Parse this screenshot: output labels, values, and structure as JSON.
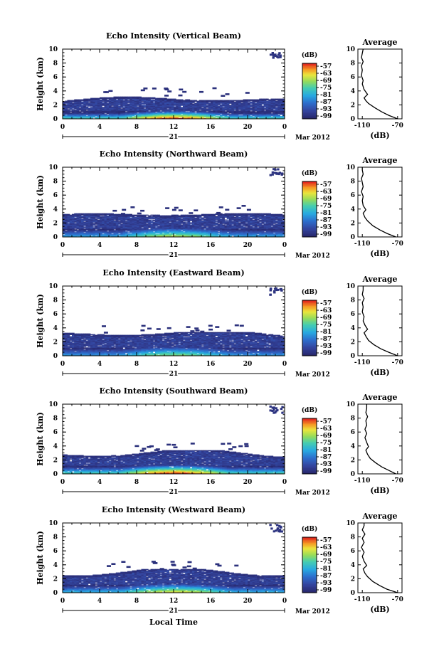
{
  "chart_data": [
    {
      "type": "heatmap",
      "title": "Echo Intensity (Vertical Beam)",
      "ylabel": "Height (km)",
      "x_ticks": [
        "0",
        "4",
        "8",
        "12",
        "16",
        "20",
        "0"
      ],
      "y_ticks": [
        "0",
        "2",
        "4",
        "6",
        "8",
        "10"
      ],
      "xlim": [
        0,
        24
      ],
      "ylim": [
        0,
        10
      ],
      "day_label": "21",
      "date_label": "Mar 2012",
      "colorbar": {
        "unit": "(dB)",
        "ticks": [
          "-57",
          "-63",
          "-69",
          "-75",
          "-81",
          "-87",
          "-93",
          "-99"
        ]
      },
      "layer": {
        "top_km": 2.8,
        "strong_km": 0.8,
        "max_db": -57
      },
      "average": {
        "title": "Average",
        "xlabel": "(dB)",
        "x_ticks": [
          "-110",
          "-70"
        ],
        "xlim": [
          -115,
          -65
        ],
        "y_ticks": [
          "0",
          "2",
          "4",
          "6",
          "8",
          "10"
        ],
        "profile": [
          [
            -70,
            0
          ],
          [
            -80,
            0.5
          ],
          [
            -88,
            1
          ],
          [
            -96,
            1.6
          ],
          [
            -103,
            2.2
          ],
          [
            -106,
            2.6
          ],
          [
            -108,
            3.0
          ],
          [
            -104,
            3.5
          ],
          [
            -108,
            4.2
          ],
          [
            -110,
            5.0
          ],
          [
            -109,
            5.5
          ],
          [
            -111,
            6.2
          ],
          [
            -110,
            7.0
          ],
          [
            -111,
            7.6
          ],
          [
            -109,
            8.2
          ],
          [
            -111,
            8.8
          ],
          [
            -110,
            9.4
          ],
          [
            -109,
            10
          ]
        ]
      }
    },
    {
      "type": "heatmap",
      "title": "Echo Intensity (Northward Beam)",
      "ylabel": "Height (km)",
      "x_ticks": [
        "0",
        "4",
        "8",
        "12",
        "16",
        "20",
        "0"
      ],
      "y_ticks": [
        "0",
        "2",
        "4",
        "6",
        "8",
        "10"
      ],
      "xlim": [
        0,
        24
      ],
      "ylim": [
        0,
        10
      ],
      "day_label": "21",
      "date_label": "Mar 2012",
      "colorbar": {
        "unit": "(dB)",
        "ticks": [
          "-57",
          "-63",
          "-69",
          "-75",
          "-81",
          "-87",
          "-93",
          "-99"
        ]
      },
      "layer": {
        "top_km": 3.2,
        "strong_km": 1.0,
        "max_db": -69
      },
      "average": {
        "title": "Average",
        "xlabel": "(dB)",
        "x_ticks": [
          "-110",
          "-70"
        ],
        "xlim": [
          -115,
          -65
        ],
        "y_ticks": [
          "0",
          "2",
          "4",
          "6",
          "8",
          "10"
        ],
        "profile": [
          [
            -72,
            0
          ],
          [
            -82,
            0.5
          ],
          [
            -90,
            1
          ],
          [
            -98,
            1.6
          ],
          [
            -104,
            2.3
          ],
          [
            -107,
            2.8
          ],
          [
            -109,
            3.4
          ],
          [
            -106,
            3.9
          ],
          [
            -109,
            4.5
          ],
          [
            -110,
            5.2
          ],
          [
            -109,
            5.8
          ],
          [
            -111,
            6.5
          ],
          [
            -109,
            7.2
          ],
          [
            -110,
            7.8
          ],
          [
            -111,
            8.4
          ],
          [
            -109,
            9.0
          ],
          [
            -110,
            9.6
          ],
          [
            -110,
            10
          ]
        ]
      }
    },
    {
      "type": "heatmap",
      "title": "Echo Intensity (Eastward Beam)",
      "ylabel": "Height (km)",
      "x_ticks": [
        "0",
        "4",
        "8",
        "12",
        "16",
        "20",
        "0"
      ],
      "y_ticks": [
        "0",
        "2",
        "4",
        "6",
        "8",
        "10"
      ],
      "xlim": [
        0,
        24
      ],
      "ylim": [
        0,
        10
      ],
      "day_label": "21",
      "date_label": "Mar 2012",
      "colorbar": {
        "unit": "(dB)",
        "ticks": [
          "-57",
          "-63",
          "-69",
          "-75",
          "-81",
          "-87",
          "-93",
          "-99"
        ]
      },
      "layer": {
        "top_km": 3.2,
        "strong_km": 1.0,
        "max_db": -72
      },
      "average": {
        "title": "Average",
        "xlabel": "(dB)",
        "x_ticks": [
          "-110",
          "-70"
        ],
        "xlim": [
          -115,
          -65
        ],
        "y_ticks": [
          "0",
          "2",
          "4",
          "6",
          "8",
          "10"
        ],
        "profile": [
          [
            -70,
            0
          ],
          [
            -80,
            0.5
          ],
          [
            -89,
            1
          ],
          [
            -97,
            1.6
          ],
          [
            -103,
            2.2
          ],
          [
            -106,
            2.8
          ],
          [
            -108,
            3.3
          ],
          [
            -104,
            3.8
          ],
          [
            -107,
            4.4
          ],
          [
            -109,
            5.0
          ],
          [
            -108,
            5.6
          ],
          [
            -110,
            6.3
          ],
          [
            -109,
            7.0
          ],
          [
            -110,
            7.6
          ],
          [
            -108,
            8.2
          ],
          [
            -110,
            8.8
          ],
          [
            -109,
            9.4
          ],
          [
            -109,
            10
          ]
        ]
      }
    },
    {
      "type": "heatmap",
      "title": "Echo Intensity (Southward Beam)",
      "ylabel": "Height (km)",
      "x_ticks": [
        "0",
        "4",
        "8",
        "12",
        "16",
        "20",
        "0"
      ],
      "y_ticks": [
        "0",
        "2",
        "4",
        "6",
        "8",
        "10"
      ],
      "xlim": [
        0,
        24
      ],
      "ylim": [
        0,
        10
      ],
      "day_label": "21",
      "date_label": "Mar 2012",
      "colorbar": {
        "unit": "(dB)",
        "ticks": [
          "-57",
          "-63",
          "-69",
          "-75",
          "-81",
          "-87",
          "-93",
          "-99"
        ]
      },
      "layer": {
        "top_km": 3.0,
        "strong_km": 1.0,
        "max_db": -57
      },
      "average": {
        "title": "Average",
        "xlabel": "(dB)",
        "x_ticks": [
          "-110",
          "-70"
        ],
        "xlim": [
          -115,
          -65
        ],
        "y_ticks": [
          "0",
          "2",
          "4",
          "6",
          "8",
          "10"
        ],
        "profile": [
          [
            -72,
            0
          ],
          [
            -80,
            0.5
          ],
          [
            -88,
            1
          ],
          [
            -95,
            1.6
          ],
          [
            -101,
            2.2
          ],
          [
            -104,
            2.8
          ],
          [
            -106,
            3.4
          ],
          [
            -103,
            3.9
          ],
          [
            -105,
            4.5
          ],
          [
            -107,
            5.2
          ],
          [
            -105,
            5.8
          ],
          [
            -107,
            6.4
          ],
          [
            -105,
            7.0
          ],
          [
            -106,
            7.6
          ],
          [
            -104,
            8.2
          ],
          [
            -106,
            8.8
          ],
          [
            -105,
            9.4
          ],
          [
            -105,
            10
          ]
        ]
      }
    },
    {
      "type": "heatmap",
      "title": "Echo Intensity (Westward Beam)",
      "ylabel": "Height (km)",
      "x_ticks": [
        "0",
        "4",
        "8",
        "12",
        "16",
        "20",
        "0"
      ],
      "y_ticks": [
        "0",
        "2",
        "4",
        "6",
        "8",
        "10"
      ],
      "xlim": [
        0,
        24
      ],
      "ylim": [
        0,
        10
      ],
      "day_label": "21",
      "date_label": "Mar 2012",
      "xlabel": "Local Time",
      "colorbar": {
        "unit": "(dB)",
        "ticks": [
          "-57",
          "-63",
          "-69",
          "-75",
          "-81",
          "-87",
          "-93",
          "-99"
        ]
      },
      "layer": {
        "top_km": 3.0,
        "strong_km": 1.0,
        "max_db": -66
      },
      "average": {
        "title": "Average",
        "xlabel": "(dB)",
        "x_ticks": [
          "-110",
          "-70"
        ],
        "xlim": [
          -115,
          -65
        ],
        "y_ticks": [
          "0",
          "2",
          "4",
          "6",
          "8",
          "10"
        ],
        "profile": [
          [
            -70,
            0
          ],
          [
            -82,
            0.5
          ],
          [
            -90,
            1
          ],
          [
            -98,
            1.6
          ],
          [
            -104,
            2.3
          ],
          [
            -107,
            2.8
          ],
          [
            -109,
            3.4
          ],
          [
            -105,
            3.9
          ],
          [
            -108,
            4.5
          ],
          [
            -110,
            5.2
          ],
          [
            -108,
            5.8
          ],
          [
            -111,
            6.5
          ],
          [
            -108,
            7.2
          ],
          [
            -110,
            7.8
          ],
          [
            -107,
            8.4
          ],
          [
            -110,
            9.0
          ],
          [
            -108,
            9.6
          ],
          [
            -108,
            10
          ]
        ]
      }
    }
  ]
}
